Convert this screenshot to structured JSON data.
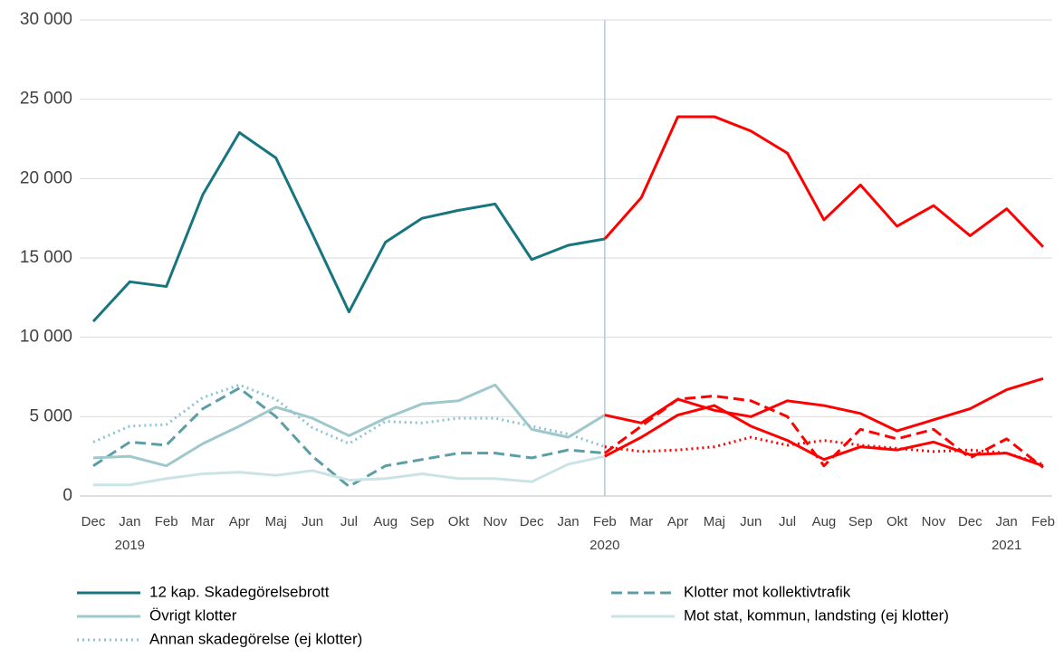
{
  "chart_data": {
    "type": "line",
    "categories": [
      "Dec",
      "Jan",
      "Feb",
      "Mar",
      "Apr",
      "Maj",
      "Jun",
      "Jul",
      "Aug",
      "Sep",
      "Okt",
      "Nov",
      "Dec",
      "Jan",
      "Feb",
      "Mar",
      "Apr",
      "Maj",
      "Jun",
      "Jul",
      "Aug",
      "Sep",
      "Okt",
      "Nov",
      "Dec",
      "Jan",
      "Feb"
    ],
    "years": [
      null,
      "2019",
      null,
      null,
      null,
      null,
      null,
      null,
      null,
      null,
      null,
      null,
      null,
      null,
      "2020",
      null,
      null,
      null,
      null,
      null,
      null,
      null,
      null,
      null,
      null,
      "2021",
      null
    ],
    "series": [
      {
        "name": "12 kap. Skadegörelsebrott",
        "color": "#177580",
        "dash": "solid",
        "values": [
          11000,
          13500,
          13200,
          19000,
          22900,
          21300,
          16500,
          11600,
          16000,
          17500,
          18000,
          18400,
          14900,
          15800,
          16200,
          18800,
          23900,
          23900,
          23000,
          21600,
          17400,
          19600,
          17000,
          18300,
          16400,
          18100,
          15700
        ]
      },
      {
        "name": "Klotter mot kollektivtrafik",
        "color": "#5c9ea6",
        "dash": "dashed",
        "values": [
          1900,
          3400,
          3200,
          5500,
          6800,
          5000,
          2500,
          600,
          1900,
          2300,
          2700,
          2700,
          2400,
          2900,
          2700,
          4400,
          6100,
          6300,
          6000,
          5000,
          1900,
          4200,
          3600,
          4200,
          2400,
          3600,
          1800
        ]
      },
      {
        "name": "Övrigt klotter",
        "color": "#9fc8cd",
        "dash": "solid",
        "values": [
          2400,
          2500,
          1900,
          3300,
          4400,
          5600,
          4900,
          3800,
          4900,
          5800,
          6000,
          7000,
          4200,
          3700,
          5100,
          4600,
          6100,
          5400,
          5000,
          6000,
          5700,
          5200,
          4100,
          4800,
          5500,
          6700,
          7400
        ]
      },
      {
        "name": "Mot stat, kommun, landsting (ej klotter)",
        "color": "#cce3e6",
        "dash": "solid",
        "values": [
          700,
          700,
          1100,
          1400,
          1500,
          1300,
          1600,
          1000,
          1100,
          1400,
          1100,
          1100,
          900,
          2000,
          2500,
          3700,
          5100,
          5700,
          4400,
          3500,
          2300,
          3100,
          2900,
          3400,
          2600,
          2700,
          1900
        ]
      },
      {
        "name": "Annan skadegörelse (ej klotter)",
        "color": "#8cc4d0",
        "dash": "dotted",
        "values": [
          3400,
          4400,
          4500,
          6200,
          7000,
          6100,
          4300,
          3300,
          4700,
          4600,
          4900,
          4900,
          4400,
          3900,
          3100,
          2800,
          2900,
          3100,
          3700,
          3200,
          3500,
          3200,
          3000,
          2800,
          2900,
          2700,
          2000
        ]
      }
    ],
    "split_index": 14,
    "split_color": "#ff0000",
    "split_line_color": "#a9cdd6",
    "ylim": [
      0,
      30000
    ],
    "yticks": [
      0,
      {
        "value": 5000,
        "label": "5 000"
      },
      {
        "value": 10000,
        "label": "10 000"
      },
      {
        "value": 15000,
        "label": "15 000"
      },
      {
        "value": 20000,
        "label": "20 000"
      },
      {
        "value": 25000,
        "label": "25 000"
      },
      {
        "value": 30000,
        "label": "30 000"
      }
    ],
    "grid": true
  }
}
